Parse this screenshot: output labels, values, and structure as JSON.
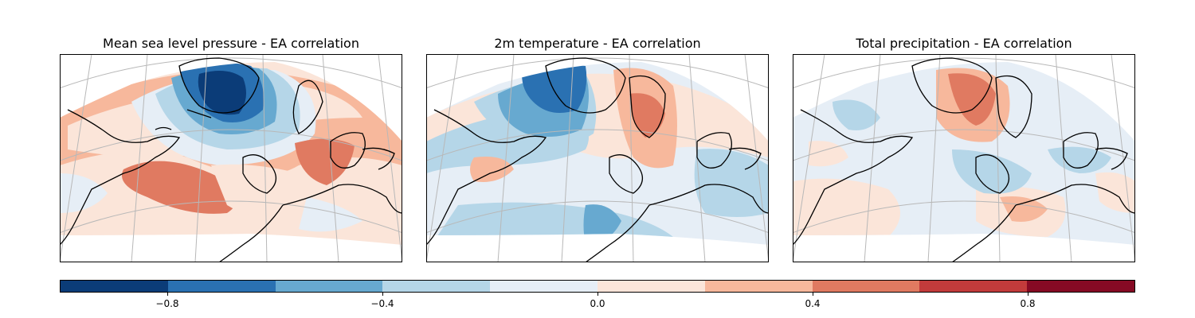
{
  "maps": [
    {
      "title": "Mean sea level pressure - EA correlation"
    },
    {
      "title": "2m temperature - EA correlation"
    },
    {
      "title": "Total precipitation - EA correlation"
    }
  ],
  "colorbar": {
    "colors": [
      "#0b3c78",
      "#2a71b2",
      "#67a9d0",
      "#b5d6e8",
      "#e6eef6",
      "#fbe5d9",
      "#f7b89c",
      "#e07a61",
      "#c23b3b",
      "#860a24"
    ],
    "ticks": [
      {
        "value": -0.8,
        "label": "−0.8"
      },
      {
        "value": -0.4,
        "label": "−0.4"
      },
      {
        "value": 0.0,
        "label": "0.0"
      },
      {
        "value": 0.4,
        "label": "0.4"
      },
      {
        "value": 0.8,
        "label": "0.8"
      }
    ],
    "range": [
      -1.0,
      1.0
    ]
  }
}
